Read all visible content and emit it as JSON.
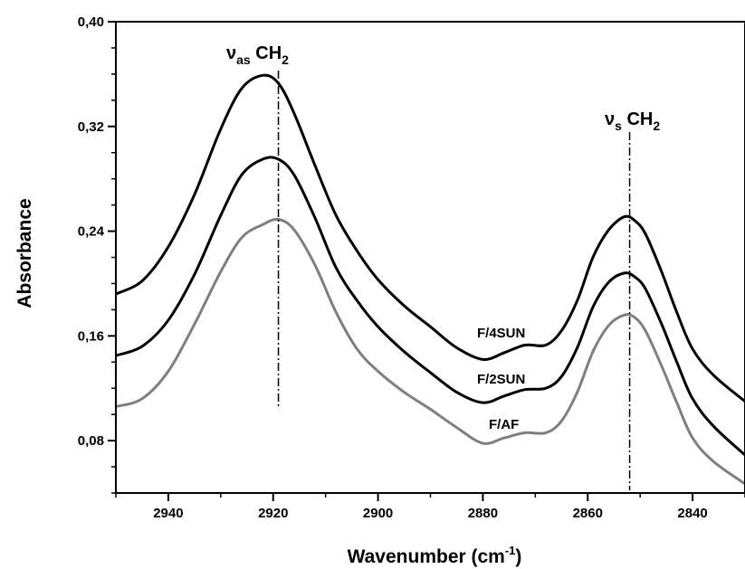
{
  "chart_data": {
    "type": "line",
    "xlabel": "Wavenumber (cm",
    "xlabel_sup": "-1",
    "xlabel_close": ")",
    "ylabel": "Absorbance",
    "xlim": [
      2950,
      2830
    ],
    "ylim": [
      0.04,
      0.4
    ],
    "x_ticks": [
      2940,
      2920,
      2900,
      2880,
      2860,
      2840
    ],
    "x_tick_labels": [
      "2940",
      "2920",
      "2900",
      "2880",
      "2860",
      "2840"
    ],
    "y_ticks": [
      0.08,
      0.16,
      0.24,
      0.32,
      0.4
    ],
    "y_tick_labels": [
      "0,08",
      "0,16",
      "0,24",
      "0,32",
      "0,40"
    ],
    "grid": false,
    "x": [
      2950,
      2945,
      2940,
      2935,
      2930,
      2926,
      2922,
      2919,
      2916,
      2912,
      2908,
      2904,
      2900,
      2895,
      2890,
      2885,
      2880,
      2876,
      2872,
      2868,
      2865,
      2862,
      2859,
      2856,
      2853,
      2851,
      2849,
      2846,
      2843,
      2840,
      2836,
      2830
    ],
    "series": [
      {
        "name": "F/4SUN",
        "color": "#000000",
        "values": [
          0.192,
          0.202,
          0.228,
          0.268,
          0.318,
          0.349,
          0.359,
          0.353,
          0.33,
          0.29,
          0.252,
          0.225,
          0.203,
          0.183,
          0.167,
          0.151,
          0.142,
          0.147,
          0.153,
          0.153,
          0.164,
          0.187,
          0.22,
          0.241,
          0.251,
          0.248,
          0.238,
          0.21,
          0.178,
          0.15,
          0.13,
          0.11
        ]
      },
      {
        "name": "F/2SUN",
        "color": "#000000",
        "values": [
          0.145,
          0.152,
          0.172,
          0.207,
          0.252,
          0.283,
          0.295,
          0.295,
          0.283,
          0.25,
          0.212,
          0.187,
          0.167,
          0.148,
          0.132,
          0.117,
          0.109,
          0.114,
          0.119,
          0.12,
          0.129,
          0.151,
          0.182,
          0.201,
          0.208,
          0.205,
          0.196,
          0.17,
          0.14,
          0.112,
          0.091,
          0.069
        ]
      },
      {
        "name": "F/AF",
        "color": "#7f7f7f",
        "values": [
          0.106,
          0.112,
          0.133,
          0.169,
          0.209,
          0.235,
          0.245,
          0.249,
          0.241,
          0.214,
          0.178,
          0.15,
          0.133,
          0.117,
          0.104,
          0.09,
          0.078,
          0.082,
          0.086,
          0.086,
          0.095,
          0.117,
          0.148,
          0.168,
          0.176,
          0.174,
          0.164,
          0.138,
          0.109,
          0.082,
          0.064,
          0.047
        ]
      }
    ],
    "annotations": [
      {
        "label": "ν",
        "sub": "as",
        "rest": " CH",
        "sub2": "2",
        "x": 2919
      },
      {
        "label": "ν",
        "sub": "s",
        "rest": " CH",
        "sub2": "2",
        "x": 2852
      }
    ]
  }
}
